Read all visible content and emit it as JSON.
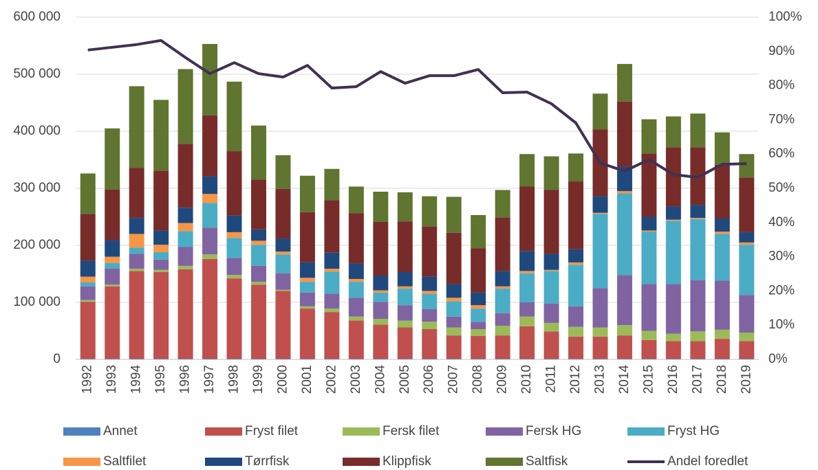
{
  "chart_data": {
    "type": "bar",
    "stacked": true,
    "categories": [
      "1992",
      "1993",
      "1994",
      "1995",
      "1996",
      "1997",
      "1998",
      "1999",
      "2000",
      "2001",
      "2002",
      "2003",
      "2004",
      "2005",
      "2006",
      "2007",
      "2008",
      "2009",
      "2010",
      "2011",
      "2012",
      "2013",
      "2014",
      "2015",
      "2016",
      "2017",
      "2018",
      "2019"
    ],
    "series": [
      {
        "name": "Annet",
        "color": "#4f81bd",
        "values": [
          1000,
          1000,
          1000,
          1000,
          1000,
          1000,
          1000,
          1000,
          1000,
          1000,
          1000,
          1000,
          1000,
          1000,
          1000,
          1000,
          1000,
          1000,
          1000,
          1000,
          1000,
          1000,
          1000,
          1000,
          1000,
          1000,
          1000,
          1000
        ]
      },
      {
        "name": "Fryst filet",
        "color": "#c0504d",
        "values": [
          100000,
          127000,
          154000,
          152000,
          157000,
          175000,
          141000,
          130000,
          119000,
          88000,
          82000,
          67000,
          60000,
          55000,
          52000,
          41000,
          40000,
          41000,
          57000,
          48000,
          39000,
          39000,
          41000,
          33000,
          31000,
          31000,
          35000,
          31000
        ]
      },
      {
        "name": "Fersk filet",
        "color": "#9bbb59",
        "values": [
          3000,
          3000,
          4000,
          4000,
          6000,
          8000,
          6000,
          5000,
          2000,
          4000,
          6000,
          7000,
          10000,
          12000,
          13000,
          14000,
          12000,
          17000,
          17000,
          15000,
          17000,
          16000,
          18000,
          16000,
          13000,
          17000,
          16000,
          15000
        ]
      },
      {
        "name": "Fersk HG",
        "color": "#8064a2",
        "values": [
          24000,
          28000,
          26000,
          18000,
          33000,
          47000,
          30000,
          28000,
          29000,
          24000,
          26000,
          33000,
          30000,
          27000,
          22000,
          19000,
          13000,
          22000,
          25000,
          34000,
          36000,
          69000,
          88000,
          82000,
          87000,
          90000,
          86000,
          66000
        ]
      },
      {
        "name": "Fryst HG",
        "color": "#4bacc6",
        "values": [
          7000,
          10000,
          11000,
          13000,
          28000,
          43000,
          35000,
          37000,
          33000,
          19000,
          39000,
          28000,
          16000,
          29000,
          27000,
          27000,
          23000,
          43000,
          51000,
          57000,
          73000,
          130000,
          143000,
          92000,
          111000,
          107000,
          82000,
          88000
        ]
      },
      {
        "name": "Saltfilet",
        "color": "#f79646",
        "values": [
          10000,
          11000,
          24000,
          13000,
          14000,
          16000,
          10000,
          7000,
          5000,
          7000,
          5000,
          5000,
          4000,
          4000,
          5000,
          6000,
          6000,
          4000,
          4000,
          2000,
          4000,
          2000,
          4000,
          2000,
          2000,
          2000,
          4000,
          4000
        ]
      },
      {
        "name": "Tørrfisk",
        "color": "#1f497d",
        "values": [
          28000,
          29000,
          28000,
          25000,
          27000,
          31000,
          29000,
          20000,
          23000,
          27000,
          28000,
          27000,
          26000,
          25000,
          25000,
          24000,
          22000,
          27000,
          35000,
          28000,
          23000,
          29000,
          43000,
          24000,
          23000,
          23000,
          23000,
          18000
        ]
      },
      {
        "name": "Klippfisk",
        "color": "#772c2a",
        "values": [
          82000,
          89000,
          88000,
          105000,
          112000,
          107000,
          113000,
          87000,
          87000,
          88000,
          92000,
          88000,
          94000,
          89000,
          88000,
          90000,
          78000,
          94000,
          113000,
          112000,
          119000,
          117000,
          114000,
          111000,
          104000,
          101000,
          94000,
          96000
        ]
      },
      {
        "name": "Saltfisk",
        "color": "#5f7530",
        "values": [
          71000,
          107000,
          143000,
          124000,
          131000,
          125000,
          122000,
          95000,
          59000,
          64000,
          55000,
          47000,
          53000,
          51000,
          53000,
          63000,
          58000,
          48000,
          57000,
          59000,
          49000,
          63000,
          66000,
          60000,
          54000,
          59000,
          57000,
          41000
        ]
      },
      {
        "name": "Andel foredlet",
        "type": "line",
        "axis": "y2",
        "color": "#403152",
        "values": [
          90.4,
          91.2,
          92.0,
          93.2,
          88.2,
          83.5,
          86.7,
          83.5,
          82.5,
          85.9,
          79.3,
          79.7,
          84.1,
          80.7,
          82.9,
          82.9,
          84.7,
          77.9,
          78.1,
          74.7,
          69.1,
          57.4,
          55.0,
          58.4,
          54.0,
          53.2,
          57.0,
          57.2
        ]
      }
    ],
    "ylim": [
      0,
      600000
    ],
    "yticks": [
      0,
      {
        "value": 100000,
        "label": "100 000"
      },
      {
        "value": 200000,
        "label": "200 000"
      },
      {
        "value": 300000,
        "label": "300 000"
      },
      {
        "value": 400000,
        "label": "400 000"
      },
      {
        "value": 500000,
        "label": "500 000"
      },
      {
        "value": 600000,
        "label": "600 000"
      }
    ],
    "y2lim": [
      0,
      100
    ],
    "y2ticks": [
      {
        "value": 0,
        "label": "0%"
      },
      {
        "value": 10,
        "label": "10%"
      },
      {
        "value": 20,
        "label": "20%"
      },
      {
        "value": 30,
        "label": "30%"
      },
      {
        "value": 40,
        "label": "40%"
      },
      {
        "value": 50,
        "label": "50%"
      },
      {
        "value": 60,
        "label": "60%"
      },
      {
        "value": 70,
        "label": "70%"
      },
      {
        "value": 80,
        "label": "80%"
      },
      {
        "value": 90,
        "label": "90%"
      },
      {
        "value": 100,
        "label": "100%"
      }
    ],
    "grid": true
  }
}
